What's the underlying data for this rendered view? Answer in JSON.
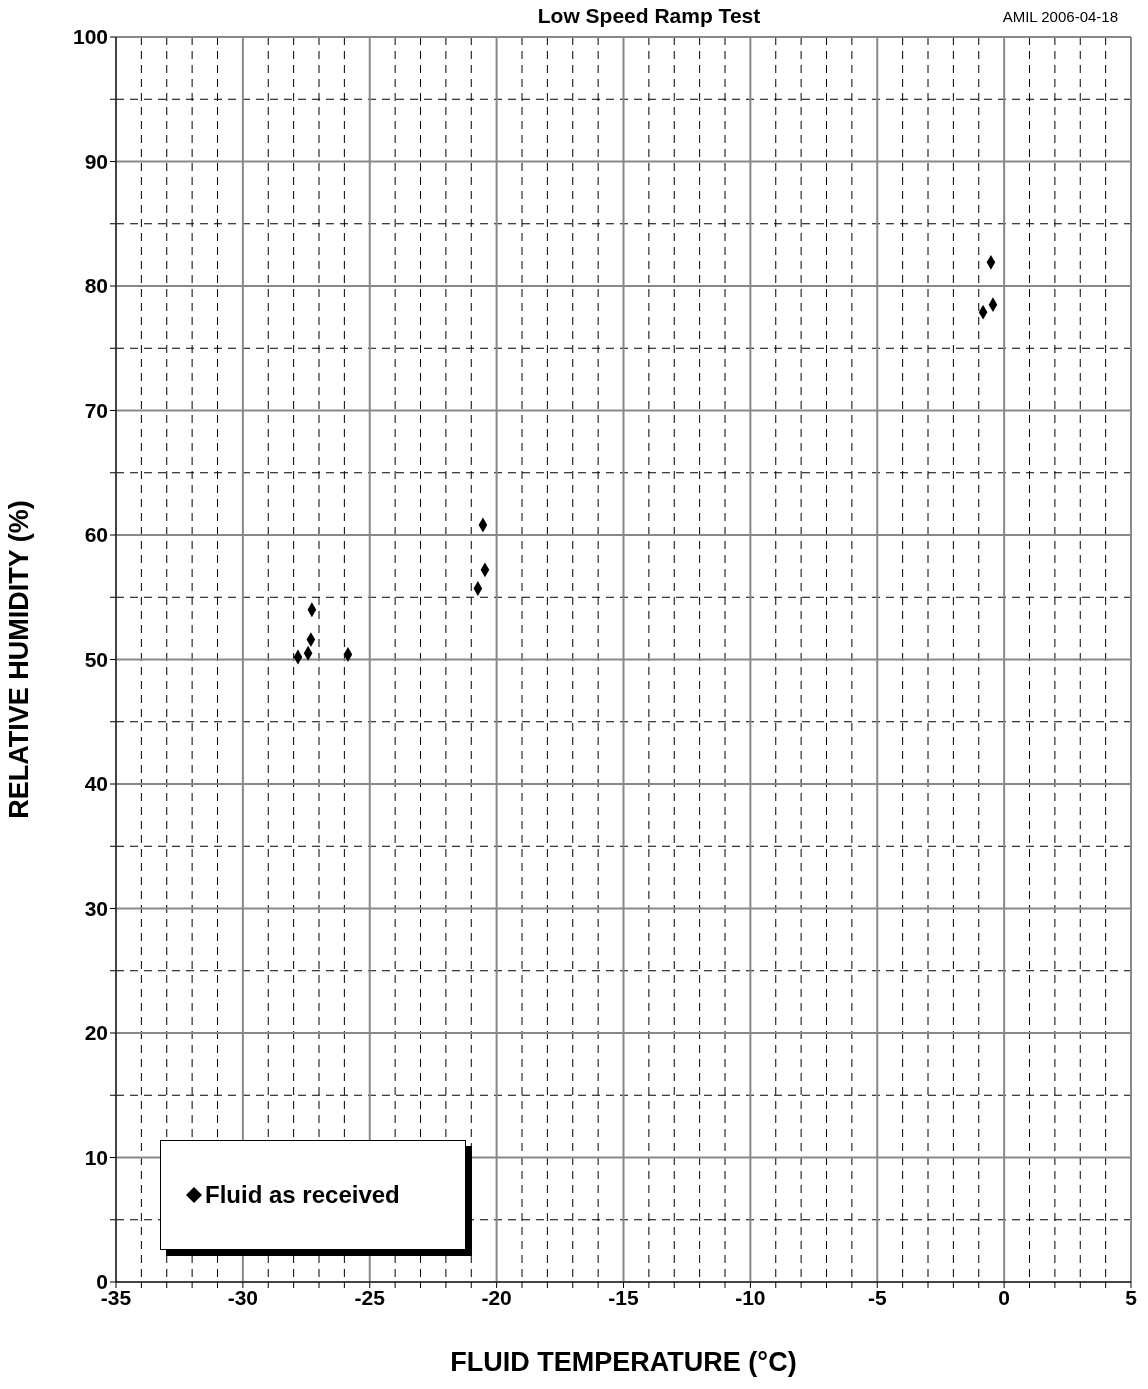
{
  "chart_data": {
    "type": "scatter",
    "title": "Low Speed Ramp Test",
    "annotations": [
      "AMIL 2006-04-18"
    ],
    "xlabel": "FLUID TEMPERATURE (°C)",
    "ylabel": "RELATIVE HUMIDITY (%)",
    "series": [
      {
        "name": "Fluid as received",
        "color": "#000000",
        "x": [
          -27.83,
          -27.43,
          -27.32,
          -27.28,
          -25.86,
          -20.74,
          -20.46,
          -20.54,
          -0.83,
          -0.44,
          -0.52
        ],
        "values": [
          50.2,
          50.5,
          51.6,
          54.0,
          50.4,
          55.7,
          57.2,
          60.8,
          77.9,
          78.5,
          81.9
        ]
      }
    ],
    "marker": "diamond",
    "legend": "bottom left",
    "grid": true,
    "xlim": [
      -35,
      5
    ],
    "xticks": [
      -35,
      {
        "value": -34,
        "label": null
      },
      {
        "value": -33,
        "label": null
      },
      {
        "value": -32,
        "label": null
      },
      {
        "value": -31,
        "label": null
      },
      -30,
      {
        "value": -29,
        "label": null
      },
      {
        "value": -28,
        "label": null
      },
      {
        "value": -27,
        "label": null
      },
      {
        "value": -26,
        "label": null
      },
      -25,
      {
        "value": -24,
        "label": null
      },
      {
        "value": -23,
        "label": null
      },
      {
        "value": -22,
        "label": null
      },
      {
        "value": -21,
        "label": null
      },
      -20,
      {
        "value": -19,
        "label": null
      },
      {
        "value": -18,
        "label": null
      },
      {
        "value": -17,
        "label": null
      },
      {
        "value": -16,
        "label": null
      },
      -15,
      {
        "value": -14,
        "label": null
      },
      {
        "value": -13,
        "label": null
      },
      {
        "value": -12,
        "label": null
      },
      {
        "value": -11,
        "label": null
      },
      -10,
      {
        "value": -9,
        "label": null
      },
      {
        "value": -8,
        "label": null
      },
      {
        "value": -7,
        "label": null
      },
      {
        "value": -6,
        "label": null
      },
      -5,
      {
        "value": -4,
        "label": null
      },
      {
        "value": -3,
        "label": null
      },
      {
        "value": -2,
        "label": null
      },
      {
        "value": -1,
        "label": null
      },
      0,
      {
        "value": 1,
        "label": null
      },
      {
        "value": 2,
        "label": null
      },
      {
        "value": 3,
        "label": null
      },
      {
        "value": 4,
        "label": null
      },
      5
    ],
    "ylim": [
      0,
      100
    ],
    "yticks": [
      0,
      {
        "value": 5,
        "label": null
      },
      10,
      {
        "value": 15,
        "label": null
      },
      20,
      {
        "value": 25,
        "label": null
      },
      30,
      {
        "value": 35,
        "label": null
      },
      40,
      {
        "value": 45,
        "label": null
      },
      50,
      {
        "value": 55,
        "label": null
      },
      60,
      {
        "value": 65,
        "label": null
      },
      70,
      {
        "value": 75,
        "label": null
      },
      80,
      {
        "value": 85,
        "label": null
      },
      90,
      {
        "value": 95,
        "label": null
      },
      100
    ]
  }
}
